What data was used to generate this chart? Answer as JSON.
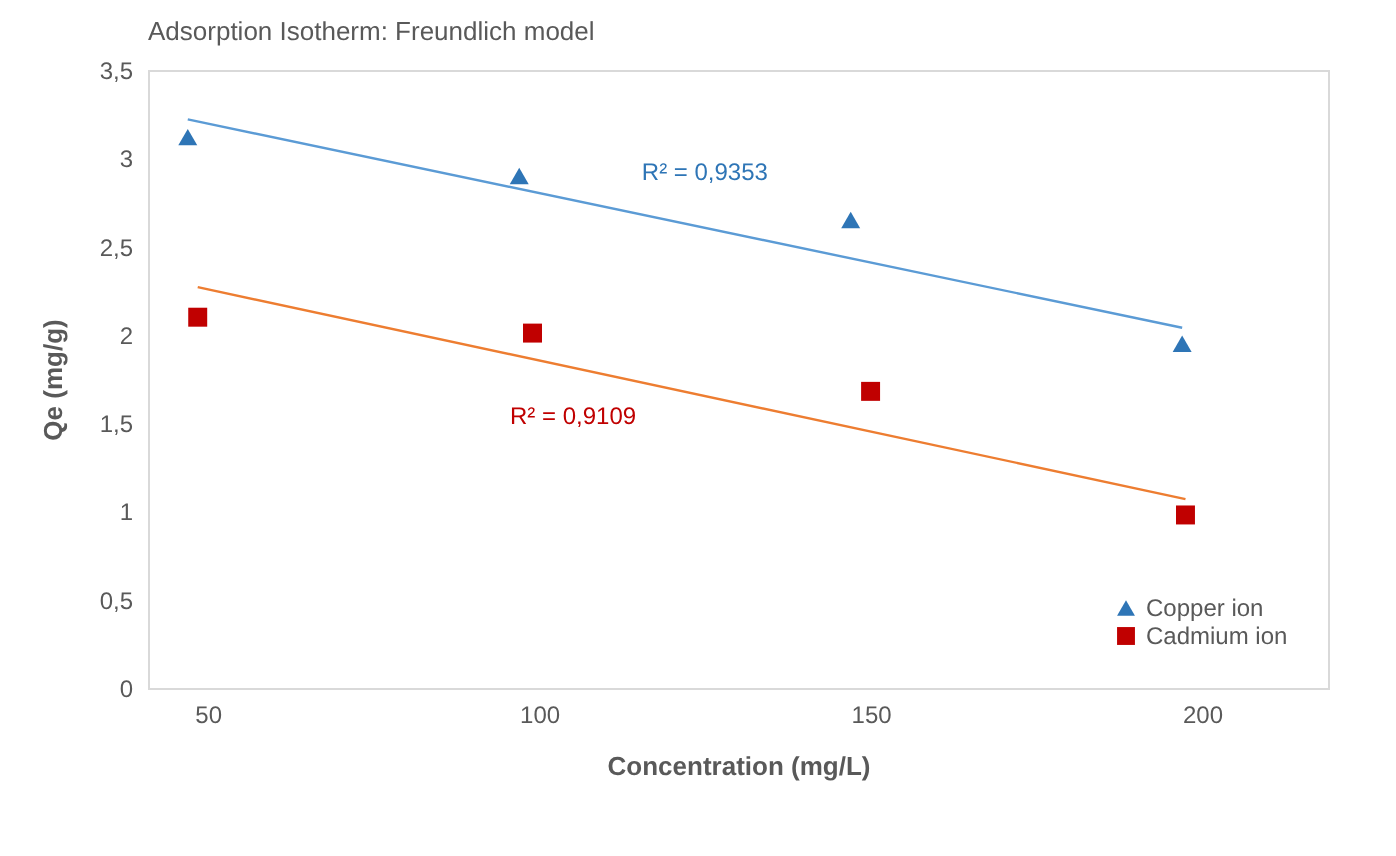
{
  "chart_data": {
    "type": "scatter",
    "title": "Adsorption Isotherm: Freundlich model",
    "xlabel": "Concentration (mg/L)",
    "ylabel": "Qe (mg/g)",
    "series": [
      {
        "name": "Copper ion",
        "color": "#2e75b6",
        "marker": "triangle",
        "x": [
          47,
          97,
          147,
          197
        ],
        "values": [
          3.12,
          2.9,
          2.65,
          1.95
        ]
      },
      {
        "name": "Cadmium ion",
        "color": "#c00000",
        "marker": "square",
        "x": [
          48.5,
          99,
          150,
          197.5
        ],
        "values": [
          2.1,
          2.01,
          1.68,
          0.98
        ]
      },
      {
        "type": "line",
        "color": "#5b9bd5",
        "marker": "none",
        "x": [
          47,
          197
        ],
        "values": [
          3.22,
          2.04
        ]
      },
      {
        "type": "line",
        "color": "#ed7d31",
        "marker": "none",
        "x": [
          48.5,
          197.5
        ],
        "values": [
          2.27,
          1.07
        ]
      }
    ],
    "annotations": [
      "R² = 0,9353",
      "R² = 0,9109"
    ],
    "xlim": [
      41,
      219
    ],
    "xticks": [
      50,
      100,
      150,
      200
    ],
    "ylim": [
      0,
      3.5
    ],
    "yticks": [
      0,
      {
        "value": 0.5,
        "label": "0,5"
      },
      1,
      {
        "value": 1.5,
        "label": "1,5"
      },
      2,
      {
        "value": 2.5,
        "label": "2,5"
      },
      3,
      {
        "value": 3.5,
        "label": "3,5"
      }
    ],
    "grid": false,
    "legend": "bottom right"
  }
}
